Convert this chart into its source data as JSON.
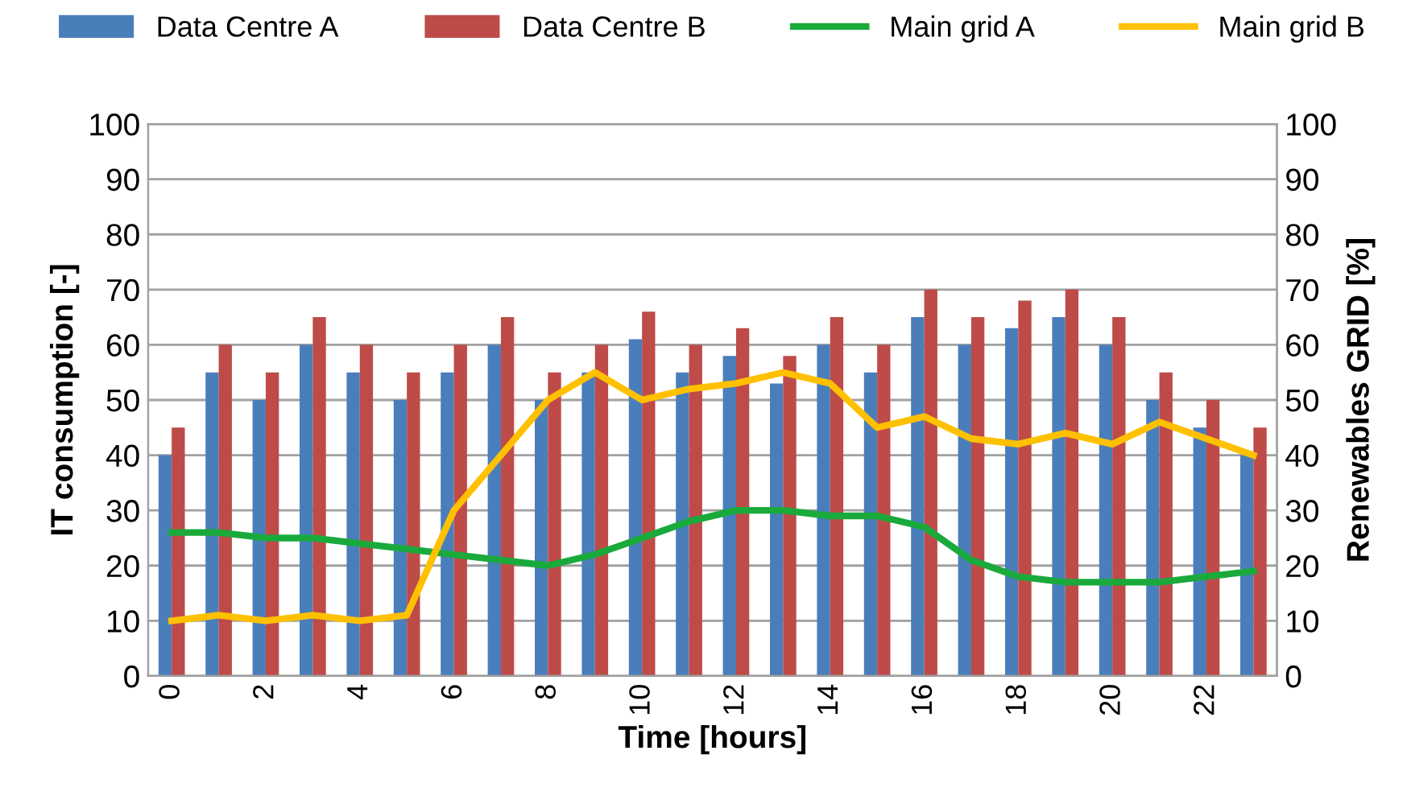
{
  "chart_data": {
    "type": "bar",
    "xlabel": "Time [hours]",
    "ylabel": "IT consumption [-]",
    "y2label": "Renewables GRID [%]",
    "categories": [
      "0",
      null,
      "2",
      null,
      "4",
      null,
      "6",
      null,
      "8",
      null,
      "10",
      null,
      "12",
      null,
      "14",
      null,
      "16",
      null,
      "18",
      null,
      "20",
      null,
      "22",
      null
    ],
    "series": [
      {
        "name": "Data Centre A",
        "color": "#4a7ebb",
        "values": [
          40,
          55,
          50,
          60,
          55,
          50,
          55,
          60,
          50,
          55,
          61,
          55,
          58,
          53,
          60,
          55,
          65,
          60,
          63,
          65,
          60,
          50,
          45,
          40
        ]
      },
      {
        "name": "Data Centre B",
        "color": "#be4b48",
        "values": [
          45,
          60,
          55,
          65,
          60,
          55,
          60,
          65,
          55,
          60,
          66,
          60,
          63,
          58,
          65,
          60,
          70,
          65,
          68,
          70,
          65,
          55,
          50,
          45
        ]
      },
      {
        "name": "Main grid A",
        "type": "line",
        "color": "#1aaa3c",
        "values": [
          26,
          26,
          25,
          25,
          24,
          23,
          22,
          21,
          20,
          22,
          25,
          28,
          30,
          30,
          29,
          29,
          27,
          21,
          18,
          17,
          17,
          17,
          18,
          19
        ]
      },
      {
        "name": "Main grid B",
        "type": "line",
        "color": "#ffc000",
        "values": [
          10,
          11,
          10,
          11,
          10,
          11,
          30,
          40,
          50,
          55,
          50,
          52,
          53,
          55,
          53,
          45,
          47,
          43,
          42,
          44,
          42,
          46,
          43,
          40
        ]
      }
    ],
    "ylim": [
      0,
      100
    ],
    "yticks": [
      0,
      10,
      20,
      30,
      40,
      50,
      60,
      70,
      80,
      90,
      100
    ],
    "y2lim": [
      0,
      100
    ],
    "y2ticks": [
      0,
      10,
      20,
      30,
      40,
      50,
      60,
      70,
      80,
      90,
      100
    ],
    "grid": "y",
    "legend": "top",
    "marker": "none",
    "line_style": "solid"
  }
}
